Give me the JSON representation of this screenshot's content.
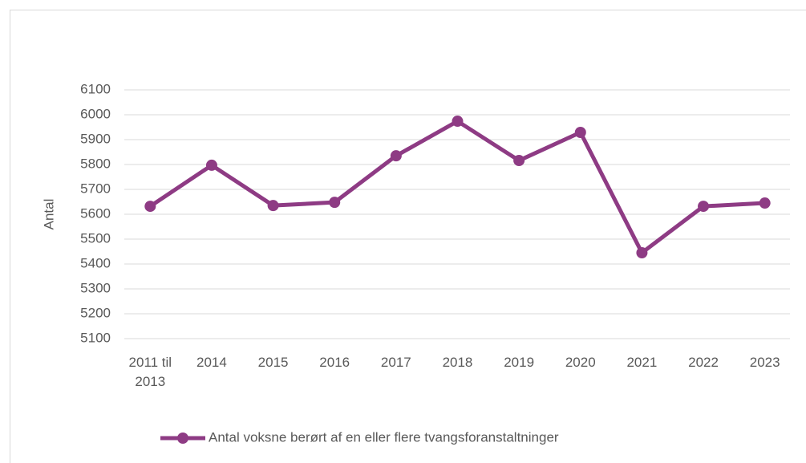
{
  "chart_data": {
    "type": "line",
    "y_label": "Antal",
    "categories": [
      "2011 til 2013",
      "2014",
      "2015",
      "2016",
      "2017",
      "2018",
      "2019",
      "2020",
      "2021",
      "2022",
      "2023"
    ],
    "series": [
      {
        "name": "Antal voksne berørt af en eller flere tvangsforanstaltninger",
        "color": "#8e3b84",
        "values": [
          5632,
          5797,
          5635,
          5648,
          5835,
          5974,
          5816,
          5929,
          5445,
          5632,
          5645
        ]
      }
    ],
    "ylim": [
      5100,
      6100
    ],
    "yticks": [
      5100,
      5200,
      5300,
      5400,
      5500,
      5600,
      5700,
      5800,
      5900,
      6000,
      6100
    ],
    "grid": true,
    "legend": "bottom"
  }
}
